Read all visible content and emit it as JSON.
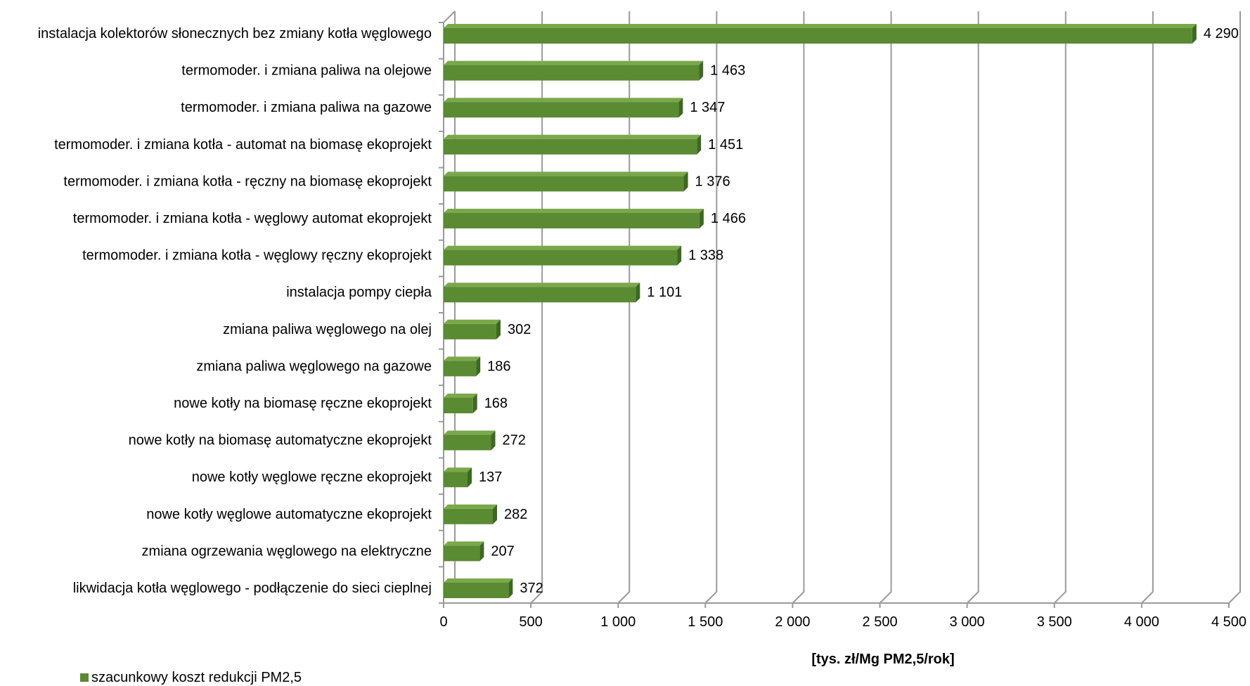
{
  "chart_data": {
    "type": "bar",
    "orientation": "horizontal",
    "style": "3d",
    "categories": [
      "instalacja kolektorów słonecznych bez zmiany kotła węglowego",
      "termomoder. i zmiana paliwa na olejowe",
      "termomoder. i zmiana paliwa na gazowe",
      "termomoder. i zmiana kotła - automat na biomasę ekoprojekt",
      "termomoder. i zmiana kotła - ręczny na biomasę ekoprojekt",
      "termomoder. i zmiana kotła - węglowy automat ekoprojekt",
      "termomoder. i zmiana kotła - węglowy ręczny ekoprojekt",
      "instalacja pompy ciepła",
      "zmiana paliwa węglowego na olej",
      "zmiana paliwa węglowego na gazowe",
      "nowe kotły na biomasę ręczne ekoprojekt",
      "nowe kotły na biomasę automatyczne ekoprojekt",
      "nowe kotły węglowe ręczne ekoprojekt",
      "nowe kotły węglowe automatyczne ekoprojekt",
      "zmiana ogrzewania węglowego na elektryczne",
      "likwidacja kotła węglowego - podłączenie do sieci cieplnej"
    ],
    "series": [
      {
        "name": "szacunkowy koszt redukcji PM2,5",
        "values": [
          4290,
          1463,
          1347,
          1451,
          1376,
          1466,
          1338,
          1101,
          302,
          186,
          168,
          272,
          137,
          282,
          207,
          372
        ],
        "data_labels": [
          "4 290",
          "1 463",
          "1 347",
          "1 451",
          "1 376",
          "1 466",
          "1 338",
          "1 101",
          "302",
          "186",
          "168",
          "272",
          "137",
          "282",
          "207",
          "372"
        ],
        "color": "#5a8a32"
      }
    ],
    "x_ticks": [
      0,
      500,
      1000,
      1500,
      2000,
      2500,
      3000,
      3500,
      4000,
      4500
    ],
    "x_tick_labels": [
      "0",
      "500",
      "1 000",
      "1 500",
      "2 000",
      "2 500",
      "3 000",
      "3 500",
      "4 000",
      "4 500"
    ],
    "xlim": [
      0,
      4500
    ],
    "xlabel": "[tys. zł/Mg PM2,5/rok]",
    "grid": true,
    "legend_position": "bottom-left",
    "colors": {
      "bar_front": "#5a8a32",
      "bar_top": "#7aa84a",
      "bar_side": "#3b6a1c",
      "grid": "#9a9a9a"
    }
  }
}
